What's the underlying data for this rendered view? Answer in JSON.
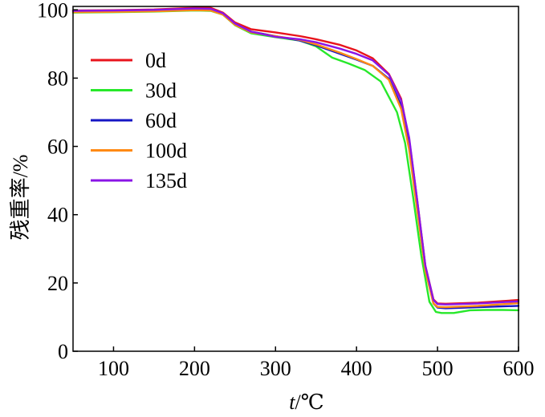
{
  "chart_data": {
    "type": "line",
    "xlabel_italic": "t",
    "xlabel_unit": "/℃",
    "ylabel": "残重率/%",
    "xlim": [
      50,
      600
    ],
    "ylim": [
      0,
      101
    ],
    "x_ticks": [
      100,
      200,
      300,
      400,
      500,
      600
    ],
    "y_ticks": [
      0,
      20,
      40,
      60,
      80,
      100
    ],
    "grid": false,
    "legend_position": "upper-left",
    "series": [
      {
        "name": "0d",
        "color": "#e8141c",
        "x": [
          50,
          100,
          150,
          200,
          220,
          235,
          250,
          270,
          300,
          330,
          350,
          380,
          400,
          420,
          440,
          455,
          465,
          475,
          485,
          495,
          500,
          510,
          550,
          600
        ],
        "y": [
          99.8,
          99.9,
          100.1,
          100.6,
          100.6,
          99.2,
          96.3,
          94.3,
          93.4,
          92.3,
          91.4,
          89.7,
          88.1,
          85.8,
          81.2,
          74,
          62,
          44,
          25,
          15.2,
          14,
          13.9,
          14.2,
          15
        ]
      },
      {
        "name": "30d",
        "color": "#27e82a",
        "x": [
          50,
          100,
          150,
          200,
          220,
          235,
          250,
          270,
          300,
          330,
          350,
          370,
          390,
          410,
          430,
          450,
          460,
          470,
          480,
          490,
          498,
          505,
          520,
          540,
          560,
          580,
          600
        ],
        "y": [
          99.2,
          99.3,
          99.5,
          99.8,
          99.7,
          98.6,
          95.5,
          93.1,
          92,
          91,
          89.3,
          86,
          84.3,
          82.4,
          79,
          70,
          61,
          45,
          28,
          14.5,
          11.5,
          11.2,
          11.2,
          12,
          12.1,
          12.1,
          12
        ]
      },
      {
        "name": "60d",
        "color": "#1515c4",
        "x": [
          50,
          100,
          150,
          200,
          220,
          235,
          250,
          270,
          300,
          330,
          350,
          380,
          400,
          420,
          440,
          455,
          465,
          475,
          485,
          495,
          500,
          510,
          550,
          600
        ],
        "y": [
          99.6,
          99.7,
          99.9,
          100.2,
          100.2,
          98.9,
          95.8,
          93.6,
          92.3,
          91,
          89.6,
          87.1,
          85.4,
          83.6,
          79.8,
          72,
          61,
          43,
          24.5,
          14,
          12.8,
          12.6,
          12.9,
          13.3
        ]
      },
      {
        "name": "100d",
        "color": "#ff8a14",
        "x": [
          50,
          100,
          150,
          200,
          220,
          235,
          250,
          270,
          300,
          330,
          350,
          380,
          400,
          420,
          440,
          455,
          465,
          475,
          485,
          495,
          500,
          510,
          550,
          600
        ],
        "y": [
          99.3,
          99.4,
          99.6,
          99.9,
          99.8,
          98.6,
          95.6,
          93.4,
          92.3,
          91.2,
          89.9,
          87.4,
          85.6,
          83.6,
          79.5,
          71,
          59,
          41,
          23.5,
          14,
          13,
          12.9,
          13.3,
          14.1
        ]
      },
      {
        "name": "135d",
        "color": "#8a14e6",
        "x": [
          50,
          100,
          150,
          200,
          220,
          235,
          250,
          270,
          300,
          330,
          350,
          380,
          400,
          420,
          440,
          455,
          465,
          475,
          485,
          495,
          500,
          510,
          550,
          600
        ],
        "y": [
          99.7,
          99.8,
          100,
          100.4,
          100.3,
          99,
          96,
          93.6,
          92.1,
          91.4,
          90.5,
          88.6,
          87.1,
          85.2,
          81,
          73.5,
          62.5,
          44,
          25,
          15,
          13.8,
          13.7,
          14,
          14.6
        ]
      }
    ]
  }
}
